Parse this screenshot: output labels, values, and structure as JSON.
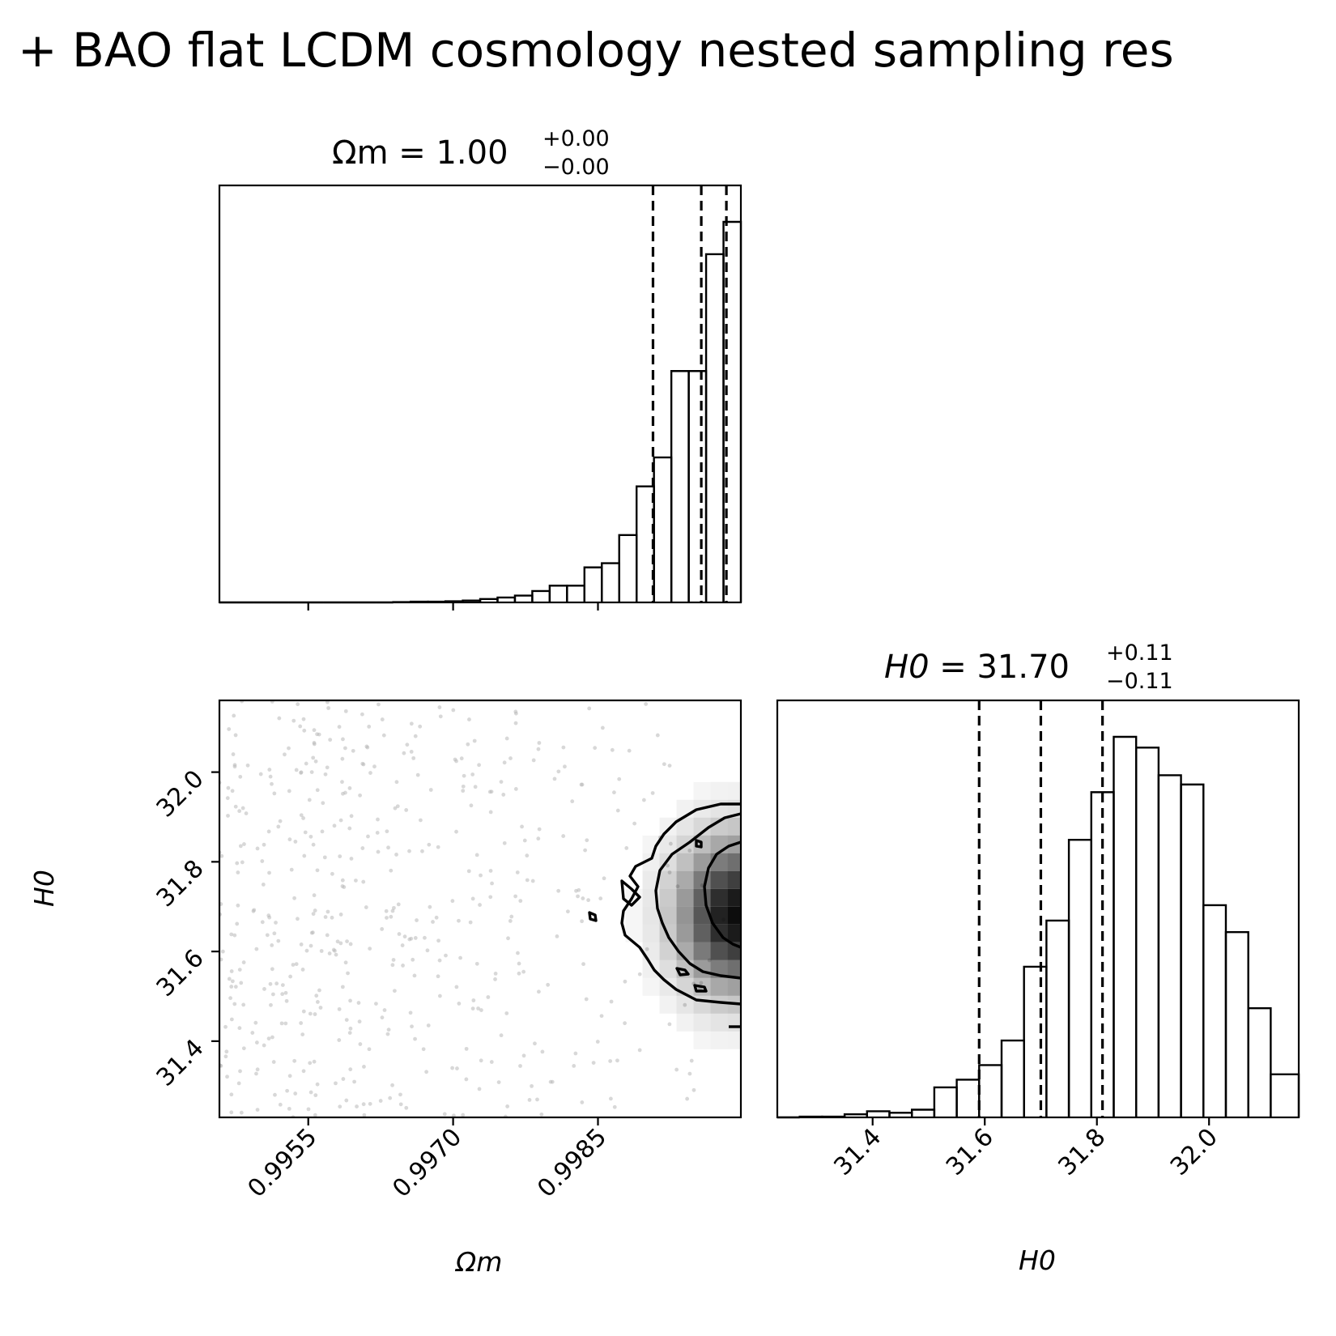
{
  "figure": {
    "suptitle": "+ BAO flat LCDM cosmology nested sampling res"
  },
  "chart_data": [
    {
      "type": "histogram",
      "panel": "Omega_m marginal",
      "title": {
        "param": "Ωm",
        "value": "1.00",
        "plus": "+0.00",
        "minus": "−0.00"
      },
      "xlim": [
        0.99458,
        0.99998
      ],
      "xticks": [
        0.9955,
        0.997,
        0.9985
      ],
      "bins": [
        {
          "x0": 0.99458,
          "x1": 0.99476,
          "y": 0.0
        },
        {
          "x0": 0.99476,
          "x1": 0.99494,
          "y": 0.0
        },
        {
          "x0": 0.99494,
          "x1": 0.99512,
          "y": 0.0
        },
        {
          "x0": 0.99512,
          "x1": 0.9953,
          "y": 0.0
        },
        {
          "x0": 0.9953,
          "x1": 0.99548,
          "y": 0.0
        },
        {
          "x0": 0.99548,
          "x1": 0.99566,
          "y": 0.0
        },
        {
          "x0": 0.99566,
          "x1": 0.99584,
          "y": 0.0
        },
        {
          "x0": 0.99584,
          "x1": 0.99602,
          "y": 0.0
        },
        {
          "x0": 0.99602,
          "x1": 0.9962,
          "y": 0.0
        },
        {
          "x0": 0.9962,
          "x1": 0.99638,
          "y": 0.0
        },
        {
          "x0": 0.99638,
          "x1": 0.99656,
          "y": 0.001
        },
        {
          "x0": 0.99656,
          "x1": 0.99674,
          "y": 0.002
        },
        {
          "x0": 0.99674,
          "x1": 0.99692,
          "y": 0.002
        },
        {
          "x0": 0.99692,
          "x1": 0.9971,
          "y": 0.003
        },
        {
          "x0": 0.9971,
          "x1": 0.99728,
          "y": 0.005
        },
        {
          "x0": 0.99728,
          "x1": 0.99746,
          "y": 0.009
        },
        {
          "x0": 0.99746,
          "x1": 0.99764,
          "y": 0.013
        },
        {
          "x0": 0.99764,
          "x1": 0.99782,
          "y": 0.018
        },
        {
          "x0": 0.99782,
          "x1": 0.998,
          "y": 0.03
        },
        {
          "x0": 0.998,
          "x1": 0.99818,
          "y": 0.044
        },
        {
          "x0": 0.99818,
          "x1": 0.99836,
          "y": 0.044
        },
        {
          "x0": 0.99836,
          "x1": 0.99854,
          "y": 0.092
        },
        {
          "x0": 0.99854,
          "x1": 0.99872,
          "y": 0.103
        },
        {
          "x0": 0.99872,
          "x1": 0.9989,
          "y": 0.177
        },
        {
          "x0": 0.9989,
          "x1": 0.99908,
          "y": 0.305
        },
        {
          "x0": 0.99908,
          "x1": 0.99926,
          "y": 0.381
        },
        {
          "x0": 0.99926,
          "x1": 0.99944,
          "y": 0.608
        },
        {
          "x0": 0.99944,
          "x1": 0.99962,
          "y": 0.608
        },
        {
          "x0": 0.99962,
          "x1": 0.9998,
          "y": 0.915
        },
        {
          "x0": 0.9998,
          "x1": 0.99998,
          "y": 1.0
        }
      ],
      "quantiles": [
        0.99907,
        0.99957,
        0.99983
      ]
    },
    {
      "type": "scatter",
      "panel": "Omega_m vs H0 2D posterior",
      "xlabel": "Ωm",
      "ylabel": "H0",
      "xlim": [
        0.99458,
        0.99998
      ],
      "ylim": [
        31.23,
        32.16
      ],
      "xticks": [
        0.9955,
        0.997,
        0.9985
      ],
      "yticks": [
        31.4,
        31.6,
        31.8,
        32.0
      ],
      "density_peak": {
        "x": 0.99993,
        "y": 31.68
      },
      "contour_levels": 3
    },
    {
      "type": "histogram",
      "panel": "H0 marginal",
      "title": {
        "param": "H0",
        "value": "31.70",
        "plus": "+0.11",
        "minus": "−0.11"
      },
      "xlabel": "H0",
      "xlim": [
        31.23,
        32.16
      ],
      "xticks": [
        31.4,
        31.6,
        31.8,
        32.0
      ],
      "bins": [
        {
          "x0": 31.23,
          "x1": 31.27,
          "y": 0.0
        },
        {
          "x0": 31.27,
          "x1": 31.31,
          "y": 0.002
        },
        {
          "x0": 31.31,
          "x1": 31.35,
          "y": 0.002
        },
        {
          "x0": 31.35,
          "x1": 31.39,
          "y": 0.008
        },
        {
          "x0": 31.39,
          "x1": 31.43,
          "y": 0.016
        },
        {
          "x0": 31.43,
          "x1": 31.47,
          "y": 0.012
        },
        {
          "x0": 31.47,
          "x1": 31.51,
          "y": 0.02
        },
        {
          "x0": 31.51,
          "x1": 31.55,
          "y": 0.078
        },
        {
          "x0": 31.55,
          "x1": 31.59,
          "y": 0.098
        },
        {
          "x0": 31.59,
          "x1": 31.63,
          "y": 0.136
        },
        {
          "x0": 31.63,
          "x1": 31.67,
          "y": 0.2
        },
        {
          "x0": 31.67,
          "x1": 31.71,
          "y": 0.392
        },
        {
          "x0": 31.71,
          "x1": 31.75,
          "y": 0.512
        },
        {
          "x0": 31.75,
          "x1": 31.79,
          "y": 0.722
        },
        {
          "x0": 31.79,
          "x1": 31.83,
          "y": 0.846
        },
        {
          "x0": 31.83,
          "x1": 31.87,
          "y": 0.99
        },
        {
          "x0": 31.87,
          "x1": 31.91,
          "y": 0.962
        },
        {
          "x0": 31.91,
          "x1": 31.95,
          "y": 0.89
        },
        {
          "x0": 31.95,
          "x1": 31.99,
          "y": 0.866
        },
        {
          "x0": 31.99,
          "x1": 32.03,
          "y": 0.552
        },
        {
          "x0": 32.03,
          "x1": 32.07,
          "y": 0.482
        },
        {
          "x0": 32.07,
          "x1": 32.11,
          "y": 0.284
        },
        {
          "x0": 32.11,
          "x1": 32.16,
          "y": 0.112
        }
      ],
      "quantiles": [
        31.59,
        31.7,
        31.81
      ]
    }
  ]
}
